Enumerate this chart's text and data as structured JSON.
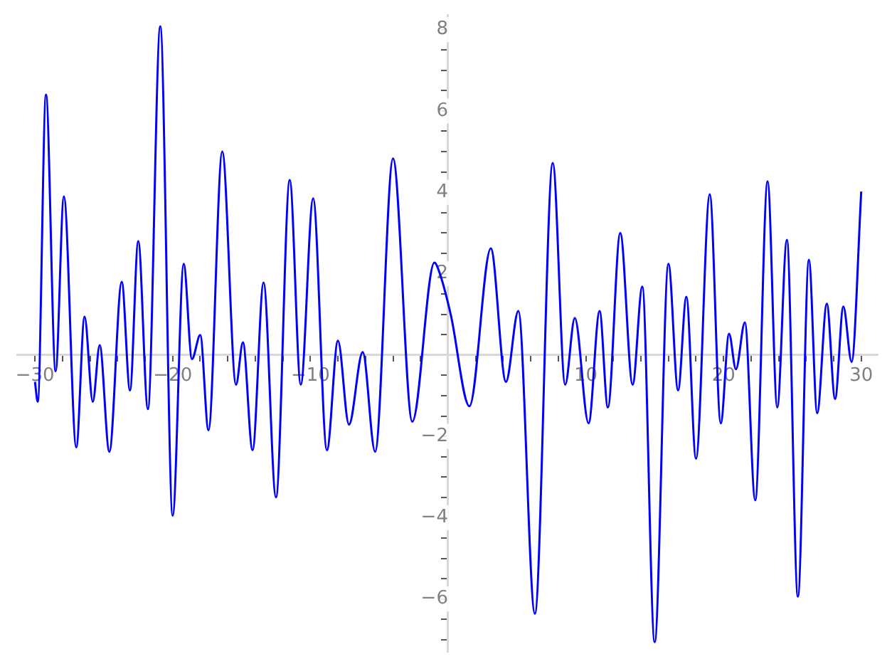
{
  "chart_data": {
    "type": "line",
    "grid": false,
    "legend": false,
    "marker": "none",
    "x": [
      -30,
      -29.8,
      -29.2,
      -28.5,
      -27.9,
      -27.0,
      -26.4,
      -25.8,
      -25.3,
      -24.6,
      -23.7,
      -23.1,
      -22.5,
      -21.8,
      -20.9,
      -20.0,
      -19.2,
      -18.6,
      -18.0,
      -17.4,
      -16.4,
      -15.4,
      -14.9,
      -14.2,
      -13.4,
      -12.5,
      -11.5,
      -10.7,
      -9.8,
      -8.8,
      -8.0,
      -7.2,
      -6.2,
      -5.3,
      -4.0,
      -2.6,
      -1.0,
      -0.6,
      0.2,
      1.55,
      3.1,
      4.2,
      5.1,
      6.3,
      7.6,
      8.5,
      9.2,
      10.2,
      11.0,
      11.6,
      12.5,
      13.4,
      14.1,
      15.0,
      16.0,
      16.7,
      17.3,
      18.0,
      19.0,
      19.8,
      20.4,
      20.9,
      21.55,
      22.3,
      23.2,
      23.9,
      24.6,
      25.4,
      26.2,
      26.8,
      27.5,
      28.1,
      28.7,
      29.3,
      30
    ],
    "series": [
      {
        "color": "#0000ff",
        "values": [
          -0.66,
          -1.15,
          6.4,
          -0.4,
          3.9,
          -2.27,
          0.94,
          -1.15,
          0.24,
          -2.38,
          1.8,
          -0.87,
          2.8,
          -1.33,
          8.08,
          -3.95,
          2.24,
          -0.1,
          0.49,
          -1.85,
          5.0,
          -0.73,
          0.31,
          -2.34,
          1.78,
          -3.5,
          4.3,
          -0.73,
          3.85,
          -2.34,
          0.35,
          -1.71,
          0.07,
          -2.38,
          4.83,
          -1.64,
          2.27,
          2.0,
          0.98,
          -1.26,
          2.62,
          -0.66,
          1.08,
          -6.36,
          4.72,
          -0.73,
          0.91,
          -1.68,
          1.08,
          -1.29,
          3.0,
          -0.73,
          1.68,
          -7.06,
          2.24,
          -0.87,
          1.43,
          -2.55,
          3.95,
          -1.68,
          0.52,
          -0.35,
          0.8,
          -3.57,
          4.27,
          -1.29,
          2.83,
          -5.94,
          2.34,
          -1.43,
          1.26,
          -1.08,
          1.19,
          -0.17,
          4.02
        ]
      }
    ],
    "xlim": [
      -31.3,
      31.2
    ],
    "ylim": [
      -7.3,
      8.35
    ],
    "xticks": [
      {
        "value": -30,
        "label": "−30"
      },
      {
        "value": -28,
        "label": null
      },
      {
        "value": -26,
        "label": null
      },
      {
        "value": -24,
        "label": null
      },
      {
        "value": -22,
        "label": null
      },
      {
        "value": -20,
        "label": "−20"
      },
      {
        "value": -18,
        "label": null
      },
      {
        "value": -16,
        "label": null
      },
      {
        "value": -14,
        "label": null
      },
      {
        "value": -12,
        "label": null
      },
      {
        "value": -10,
        "label": "−10"
      },
      {
        "value": -8,
        "label": null
      },
      {
        "value": -6,
        "label": null
      },
      {
        "value": -4,
        "label": null
      },
      {
        "value": -2,
        "label": null
      },
      {
        "value": 0,
        "label": null
      },
      {
        "value": 2,
        "label": null
      },
      {
        "value": 4,
        "label": null
      },
      {
        "value": 6,
        "label": null
      },
      {
        "value": 8,
        "label": null
      },
      {
        "value": 10,
        "label": "10"
      },
      {
        "value": 12,
        "label": null
      },
      {
        "value": 14,
        "label": null
      },
      {
        "value": 16,
        "label": null
      },
      {
        "value": 18,
        "label": null
      },
      {
        "value": 20,
        "label": "20"
      },
      {
        "value": 22,
        "label": null
      },
      {
        "value": 24,
        "label": null
      },
      {
        "value": 26,
        "label": null
      },
      {
        "value": 28,
        "label": null
      },
      {
        "value": 30,
        "label": "30"
      }
    ],
    "yticks": [
      {
        "value": -7,
        "label": null
      },
      {
        "value": -6.5,
        "label": null
      },
      {
        "value": -6,
        "label": "−6"
      },
      {
        "value": -5.5,
        "label": null
      },
      {
        "value": -5,
        "label": null
      },
      {
        "value": -4.5,
        "label": null
      },
      {
        "value": -4,
        "label": "−4"
      },
      {
        "value": -3.5,
        "label": null
      },
      {
        "value": -3,
        "label": null
      },
      {
        "value": -2.5,
        "label": null
      },
      {
        "value": -2,
        "label": "−2"
      },
      {
        "value": -1.5,
        "label": null
      },
      {
        "value": -1,
        "label": null
      },
      {
        "value": -0.5,
        "label": null
      },
      {
        "value": 0,
        "label": null
      },
      {
        "value": 0.5,
        "label": null
      },
      {
        "value": 1,
        "label": null
      },
      {
        "value": 1.5,
        "label": null
      },
      {
        "value": 2,
        "label": "2"
      },
      {
        "value": 2.5,
        "label": null
      },
      {
        "value": 3,
        "label": null
      },
      {
        "value": 3.5,
        "label": null
      },
      {
        "value": 4,
        "label": "4"
      },
      {
        "value": 4.5,
        "label": null
      },
      {
        "value": 5,
        "label": null
      },
      {
        "value": 5.5,
        "label": null
      },
      {
        "value": 6,
        "label": "6"
      },
      {
        "value": 6.5,
        "label": null
      },
      {
        "value": 7,
        "label": null
      },
      {
        "value": 7.5,
        "label": null
      },
      {
        "value": 8,
        "label": "8"
      }
    ]
  }
}
